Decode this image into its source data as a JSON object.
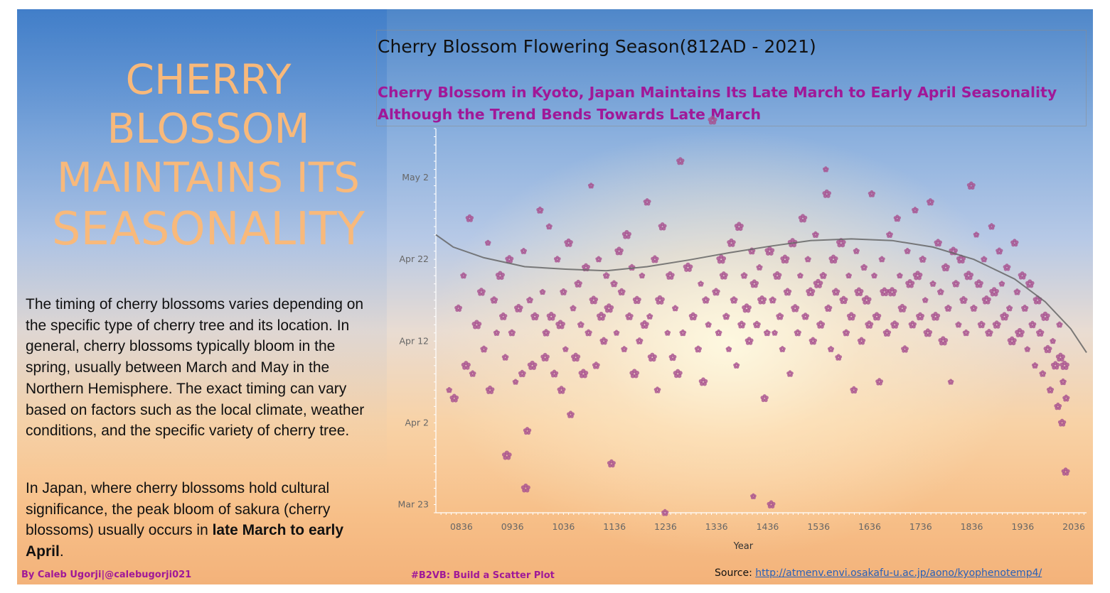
{
  "hero": {
    "line1": "CHERRY",
    "line2": "BLOSSOM",
    "line3": "MAINTAINS ITS",
    "line4": "SEASONALITY"
  },
  "paragraph1": "The timing of cherry blossoms varies depending on the specific type of cherry tree and its location. In general, cherry blossoms typically bloom in the spring, usually between March and May in the Northern Hemisphere. The exact timing can vary based on factors such as the local climate, weather conditions, and the specific variety of cherry tree.",
  "paragraph2": {
    "before": "In Japan, where cherry blossoms hold cultural significance, the peak bloom of sakura (cherry blossoms) usually occurs in ",
    "bold": "late March to early April",
    "after": "."
  },
  "footer": {
    "credit": "By Caleb Ugorji|@calebugorji021",
    "tag": "#B2VB: Build a Scatter Plot",
    "source_label": "Source: ",
    "source_url": "http://atmenv.envi.osakafu-u.ac.jp/aono/kyophenotemp4/"
  },
  "colors": {
    "hero": "#f8b97b",
    "accent": "#a01898",
    "marker": "#a8508f",
    "trend": "#666666"
  },
  "chart_data": {
    "type": "scatter",
    "title": "Cherry Blossom Flowering Season(812AD - 2021)",
    "subtitle": "Cherry Blossom in Kyoto, Japan Maintains Its Late March to Early April Seasonality Although the Trend Bends Towards Late March",
    "xlabel": "Year",
    "ylabel": "",
    "xlim": [
      786,
      2061
    ],
    "ylim": [
      "Mar 22",
      "May 8"
    ],
    "x_ticks": [
      "0836",
      "0936",
      "1036",
      "1136",
      "1236",
      "1336",
      "1436",
      "1536",
      "1636",
      "1736",
      "1836",
      "1936",
      "2036"
    ],
    "y_ticks": [
      "Mar 23",
      "Apr 2",
      "Apr 12",
      "Apr 22",
      "May 2"
    ],
    "marker": "blossom-icon",
    "grid": false,
    "legend": "none",
    "points_approx": [
      [
        812,
        96
      ],
      [
        822,
        95
      ],
      [
        830,
        106
      ],
      [
        840,
        110
      ],
      [
        845,
        99
      ],
      [
        852,
        117
      ],
      [
        858,
        98
      ],
      [
        866,
        104
      ],
      [
        875,
        108
      ],
      [
        880,
        101
      ],
      [
        888,
        114
      ],
      [
        892,
        96
      ],
      [
        900,
        107
      ],
      [
        905,
        103
      ],
      [
        912,
        110
      ],
      [
        918,
        105
      ],
      [
        922,
        100
      ],
      [
        925,
        88
      ],
      [
        930,
        112
      ],
      [
        935,
        103
      ],
      [
        942,
        97
      ],
      [
        948,
        106
      ],
      [
        955,
        98
      ],
      [
        958,
        113
      ],
      [
        962,
        84
      ],
      [
        965,
        91
      ],
      [
        970,
        107
      ],
      [
        975,
        99
      ],
      [
        980,
        105
      ],
      [
        990,
        118
      ],
      [
        995,
        108
      ],
      [
        1000,
        100
      ],
      [
        1002,
        103
      ],
      [
        1008,
        116
      ],
      [
        1012,
        105
      ],
      [
        1018,
        98
      ],
      [
        1024,
        112
      ],
      [
        1030,
        104
      ],
      [
        1032,
        96
      ],
      [
        1036,
        108
      ],
      [
        1040,
        101
      ],
      [
        1046,
        114
      ],
      [
        1050,
        93
      ],
      [
        1055,
        106
      ],
      [
        1060,
        100
      ],
      [
        1065,
        109
      ],
      [
        1070,
        104
      ],
      [
        1075,
        98
      ],
      [
        1080,
        111
      ],
      [
        1085,
        103
      ],
      [
        1090,
        121
      ],
      [
        1095,
        107
      ],
      [
        1100,
        99
      ],
      [
        1105,
        112
      ],
      [
        1110,
        105
      ],
      [
        1115,
        102
      ],
      [
        1120,
        110
      ],
      [
        1125,
        106
      ],
      [
        1130,
        87
      ],
      [
        1135,
        109
      ],
      [
        1140,
        103
      ],
      [
        1145,
        113
      ],
      [
        1150,
        108
      ],
      [
        1155,
        101
      ],
      [
        1160,
        115
      ],
      [
        1165,
        105
      ],
      [
        1170,
        111
      ],
      [
        1175,
        98
      ],
      [
        1180,
        107
      ],
      [
        1185,
        102
      ],
      [
        1190,
        110
      ],
      [
        1195,
        104
      ],
      [
        1200,
        119
      ],
      [
        1205,
        105
      ],
      [
        1210,
        100
      ],
      [
        1215,
        112
      ],
      [
        1220,
        96
      ],
      [
        1225,
        107
      ],
      [
        1230,
        116
      ],
      [
        1235,
        81
      ],
      [
        1240,
        103
      ],
      [
        1245,
        110
      ],
      [
        1250,
        100
      ],
      [
        1255,
        106
      ],
      [
        1260,
        98
      ],
      [
        1265,
        124
      ],
      [
        1270,
        103
      ],
      [
        1280,
        111
      ],
      [
        1290,
        105
      ],
      [
        1300,
        101
      ],
      [
        1305,
        109
      ],
      [
        1310,
        97
      ],
      [
        1315,
        107
      ],
      [
        1320,
        104
      ],
      [
        1328,
        129
      ],
      [
        1335,
        108
      ],
      [
        1340,
        103
      ],
      [
        1345,
        112
      ],
      [
        1350,
        110
      ],
      [
        1355,
        105
      ],
      [
        1360,
        101
      ],
      [
        1365,
        114
      ],
      [
        1370,
        107
      ],
      [
        1375,
        99
      ],
      [
        1380,
        116
      ],
      [
        1385,
        104
      ],
      [
        1390,
        110
      ],
      [
        1395,
        106
      ],
      [
        1400,
        102
      ],
      [
        1405,
        113
      ],
      [
        1408,
        83
      ],
      [
        1410,
        109
      ],
      [
        1415,
        104
      ],
      [
        1420,
        111
      ],
      [
        1425,
        107
      ],
      [
        1430,
        95
      ],
      [
        1435,
        103
      ],
      [
        1440,
        113
      ],
      [
        1443,
        82
      ],
      [
        1446,
        107
      ],
      [
        1450,
        103
      ],
      [
        1455,
        110
      ],
      [
        1460,
        105
      ],
      [
        1465,
        101
      ],
      [
        1470,
        112
      ],
      [
        1475,
        108
      ],
      [
        1480,
        98
      ],
      [
        1485,
        114
      ],
      [
        1490,
        106
      ],
      [
        1495,
        103
      ],
      [
        1500,
        110
      ],
      [
        1505,
        117
      ],
      [
        1510,
        105
      ],
      [
        1515,
        112
      ],
      [
        1520,
        108
      ],
      [
        1525,
        102
      ],
      [
        1530,
        115
      ],
      [
        1535,
        109
      ],
      [
        1540,
        104
      ],
      [
        1545,
        110
      ],
      [
        1550,
        123
      ],
      [
        1552,
        120
      ],
      [
        1555,
        106
      ],
      [
        1560,
        101
      ],
      [
        1565,
        112
      ],
      [
        1570,
        108
      ],
      [
        1575,
        100
      ],
      [
        1580,
        114
      ],
      [
        1585,
        107
      ],
      [
        1590,
        103
      ],
      [
        1595,
        110
      ],
      [
        1600,
        105
      ],
      [
        1605,
        96
      ],
      [
        1610,
        113
      ],
      [
        1615,
        108
      ],
      [
        1620,
        102
      ],
      [
        1625,
        111
      ],
      [
        1630,
        107
      ],
      [
        1635,
        104
      ],
      [
        1640,
        120
      ],
      [
        1645,
        110
      ],
      [
        1650,
        105
      ],
      [
        1655,
        97
      ],
      [
        1660,
        112
      ],
      [
        1665,
        108
      ],
      [
        1670,
        103
      ],
      [
        1675,
        115
      ],
      [
        1680,
        108
      ],
      [
        1685,
        104
      ],
      [
        1690,
        117
      ],
      [
        1695,
        110
      ],
      [
        1700,
        106
      ],
      [
        1705,
        101
      ],
      [
        1710,
        113
      ],
      [
        1715,
        109
      ],
      [
        1720,
        104
      ],
      [
        1725,
        118
      ],
      [
        1730,
        110
      ],
      [
        1735,
        105
      ],
      [
        1740,
        112
      ],
      [
        1745,
        107
      ],
      [
        1750,
        103
      ],
      [
        1755,
        119
      ],
      [
        1760,
        109
      ],
      [
        1765,
        105
      ],
      [
        1770,
        114
      ],
      [
        1775,
        108
      ],
      [
        1780,
        102
      ],
      [
        1785,
        111
      ],
      [
        1790,
        106
      ],
      [
        1795,
        97
      ],
      [
        1800,
        113
      ],
      [
        1805,
        109
      ],
      [
        1810,
        104
      ],
      [
        1815,
        112
      ],
      [
        1820,
        107
      ],
      [
        1825,
        103
      ],
      [
        1830,
        110
      ],
      [
        1835,
        121
      ],
      [
        1840,
        106
      ],
      [
        1845,
        115
      ],
      [
        1850,
        109
      ],
      [
        1855,
        104
      ],
      [
        1860,
        112
      ],
      [
        1865,
        107
      ],
      [
        1870,
        103
      ],
      [
        1875,
        116
      ],
      [
        1880,
        108
      ],
      [
        1885,
        104
      ],
      [
        1890,
        113
      ],
      [
        1895,
        109
      ],
      [
        1900,
        105
      ],
      [
        1905,
        111
      ],
      [
        1910,
        106
      ],
      [
        1915,
        102
      ],
      [
        1920,
        114
      ],
      [
        1925,
        108
      ],
      [
        1930,
        103
      ],
      [
        1935,
        110
      ],
      [
        1940,
        106
      ],
      [
        1945,
        101
      ],
      [
        1950,
        109
      ],
      [
        1955,
        104
      ],
      [
        1960,
        99
      ],
      [
        1965,
        107
      ],
      [
        1970,
        103
      ],
      [
        1975,
        98
      ],
      [
        1980,
        105
      ],
      [
        1985,
        101
      ],
      [
        1990,
        96
      ],
      [
        1995,
        102
      ],
      [
        2000,
        99
      ],
      [
        2005,
        94
      ],
      [
        2008,
        104
      ],
      [
        2010,
        100
      ],
      [
        2013,
        92
      ],
      [
        2015,
        97
      ],
      [
        2018,
        99
      ],
      [
        2020,
        86
      ],
      [
        2021,
        95
      ]
    ]
  }
}
